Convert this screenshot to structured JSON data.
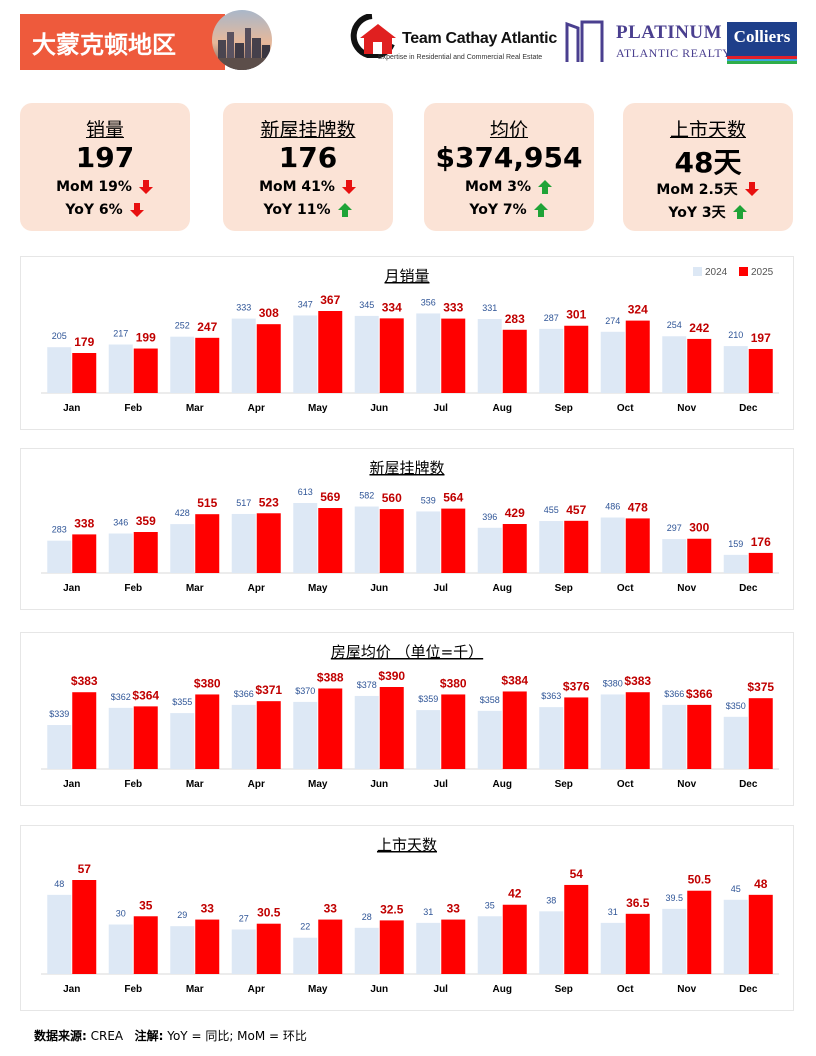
{
  "header": {
    "region_title": "大蒙克顿地区",
    "tca_name": "Team Cathay Atlantic",
    "tca_tagline": "Expertise in Residential and Commercial Real Estate",
    "platinum_name": "PLATINUM",
    "platinum_sub": "ATLANTIC REALTY",
    "colliers_name": "Colliers"
  },
  "kpis": [
    {
      "label": "销量",
      "value": "197",
      "mom": "MoM 19%",
      "mom_dir": "down",
      "yoy": "YoY 6%",
      "yoy_dir": "down"
    },
    {
      "label": "新屋挂牌数",
      "value": "176",
      "mom": "MoM 41%",
      "mom_dir": "down",
      "yoy": "YoY 11%",
      "yoy_dir": "up"
    },
    {
      "label": "均价",
      "value": "$374,954",
      "mom": "MoM 3%",
      "mom_dir": "up",
      "yoy": "YoY 7%",
      "yoy_dir": "up"
    },
    {
      "label": "上市天数",
      "value": "48天",
      "mom": "MoM 2.5天",
      "mom_dir": "down",
      "yoy": "YoY 3天",
      "yoy_dir": "up"
    }
  ],
  "colors": {
    "bar_2024": "#dde8f5",
    "bar_2025": "#ff0000",
    "label_2024": "#2f5597",
    "label_2025": "#c00000",
    "arrow_down": "#e81010",
    "arrow_up": "#1fa337",
    "kpi_bg": "#fbe3d6",
    "region_bg": "#ee5a3c"
  },
  "chart_data": [
    {
      "type": "bar",
      "title": "月销量",
      "categories": [
        "Jan",
        "Feb",
        "Mar",
        "Apr",
        "May",
        "Jun",
        "Jul",
        "Aug",
        "Sep",
        "Oct",
        "Nov",
        "Dec"
      ],
      "series": [
        {
          "name": "2024",
          "values": [
            205,
            217,
            252,
            333,
            347,
            345,
            356,
            331,
            287,
            274,
            254,
            210
          ]
        },
        {
          "name": "2025",
          "values": [
            179,
            199,
            247,
            308,
            367,
            334,
            333,
            283,
            301,
            324,
            242,
            197
          ]
        }
      ],
      "legend": "top-right",
      "prefix": ""
    },
    {
      "type": "bar",
      "title": "新屋挂牌数",
      "categories": [
        "Jan",
        "Feb",
        "Mar",
        "Apr",
        "May",
        "Jun",
        "Jul",
        "Aug",
        "Sep",
        "Oct",
        "Nov",
        "Dec"
      ],
      "series": [
        {
          "name": "2024",
          "values": [
            283,
            346,
            428,
            517,
            613,
            582,
            539,
            396,
            455,
            486,
            297,
            159
          ]
        },
        {
          "name": "2025",
          "values": [
            338,
            359,
            515,
            523,
            569,
            560,
            564,
            429,
            457,
            478,
            300,
            176
          ]
        }
      ],
      "legend": "none",
      "prefix": ""
    },
    {
      "type": "bar",
      "title": "房屋均价 （单位=千）",
      "categories": [
        "Jan",
        "Feb",
        "Mar",
        "Apr",
        "May",
        "Jun",
        "Jul",
        "Aug",
        "Sep",
        "Oct",
        "Nov",
        "Dec"
      ],
      "series": [
        {
          "name": "2024",
          "values": [
            339,
            362,
            355,
            366,
            370,
            378,
            359,
            358,
            363,
            380,
            366,
            350
          ]
        },
        {
          "name": "2025",
          "values": [
            383,
            364,
            380,
            371,
            388,
            390,
            380,
            384,
            376,
            383,
            366,
            375
          ]
        }
      ],
      "legend": "none",
      "prefix": "$",
      "ymin": 280
    },
    {
      "type": "bar",
      "title": "上市天数",
      "categories": [
        "Jan",
        "Feb",
        "Mar",
        "Apr",
        "May",
        "Jun",
        "Jul",
        "Aug",
        "Sep",
        "Oct",
        "Nov",
        "Dec"
      ],
      "series": [
        {
          "name": "2024",
          "values": [
            48,
            30,
            29,
            27,
            22,
            28,
            31,
            35,
            38,
            31,
            39.5,
            45
          ]
        },
        {
          "name": "2025",
          "values": [
            57,
            35,
            33,
            30.5,
            33,
            32.5,
            33,
            42,
            54,
            36.5,
            50.5,
            48
          ]
        }
      ],
      "legend": "none",
      "prefix": ""
    }
  ],
  "footer": {
    "source_label": "数据来源:",
    "source_value": " CREA",
    "note_label": "注解:",
    "note_value": " YoY = 同比; MoM = 环比"
  }
}
